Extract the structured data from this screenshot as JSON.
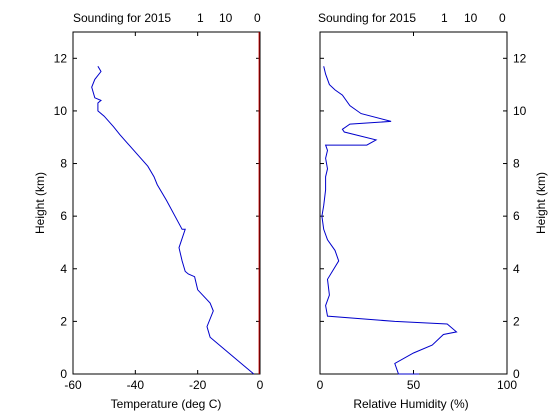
{
  "chart_data": [
    {
      "type": "line",
      "title": "Sounding for 2015",
      "title_extras": [
        "1",
        "10",
        "0"
      ],
      "xlabel": "Temperature (deg C)",
      "ylabel": "Height (km)",
      "xlim": [
        -60,
        0
      ],
      "ylim": [
        0,
        13
      ],
      "xticks": [
        -60,
        -40,
        -20,
        0
      ],
      "yticks": [
        0,
        2,
        4,
        6,
        8,
        10,
        12
      ],
      "ytick_side": "left",
      "series": [
        {
          "color": "#0000cc",
          "x": [
            -2,
            -5,
            -10,
            -16,
            -17,
            -15,
            -16,
            -20,
            -21,
            -23,
            -24,
            -25,
            -26,
            -24,
            -25,
            -30,
            -33,
            -34,
            -36,
            -39,
            -42,
            -45,
            -47,
            -50,
            -52,
            -52,
            -51,
            -53,
            -54,
            -53,
            -51,
            -52
          ],
          "y": [
            0.0,
            0.3,
            0.8,
            1.4,
            1.8,
            2.4,
            2.7,
            3.2,
            3.7,
            3.8,
            3.9,
            4.3,
            4.8,
            5.5,
            5.5,
            6.6,
            7.2,
            7.5,
            7.9,
            8.3,
            8.7,
            9.1,
            9.4,
            9.8,
            10.0,
            10.3,
            10.4,
            10.5,
            10.9,
            11.2,
            11.5,
            11.7
          ]
        },
        {
          "color": "#cc0000",
          "x": [
            -0.3,
            -0.3
          ],
          "y": [
            0,
            13
          ]
        }
      ]
    },
    {
      "type": "line",
      "title": "Sounding for 2015",
      "title_extras": [
        "1",
        "10",
        "0"
      ],
      "xlabel": "Relative Humidity (%)",
      "ylabel": "Height (km)",
      "xlim": [
        0,
        100
      ],
      "ylim": [
        0,
        13
      ],
      "xticks": [
        0,
        50,
        100
      ],
      "yticks": [
        0,
        2,
        4,
        6,
        8,
        10,
        12
      ],
      "ytick_side": "right",
      "series": [
        {
          "color": "#0000cc",
          "x": [
            53,
            42,
            40,
            50,
            60,
            66,
            73,
            68,
            40,
            4,
            3,
            5,
            4,
            10,
            8,
            4,
            2,
            1,
            2,
            3,
            3,
            4,
            3,
            4,
            3,
            25,
            30,
            13,
            12,
            16,
            38,
            22,
            16,
            12,
            8,
            5,
            3,
            2
          ],
          "y": [
            0.0,
            0.0,
            0.4,
            0.8,
            1.1,
            1.5,
            1.6,
            1.9,
            2.0,
            2.2,
            2.6,
            3.0,
            3.6,
            4.3,
            4.7,
            5.1,
            5.5,
            6.0,
            6.4,
            7.0,
            7.5,
            7.8,
            8.2,
            8.5,
            8.7,
            8.7,
            8.9,
            9.2,
            9.3,
            9.5,
            9.6,
            9.9,
            10.2,
            10.6,
            10.8,
            11.0,
            11.4,
            11.7
          ]
        }
      ]
    }
  ]
}
